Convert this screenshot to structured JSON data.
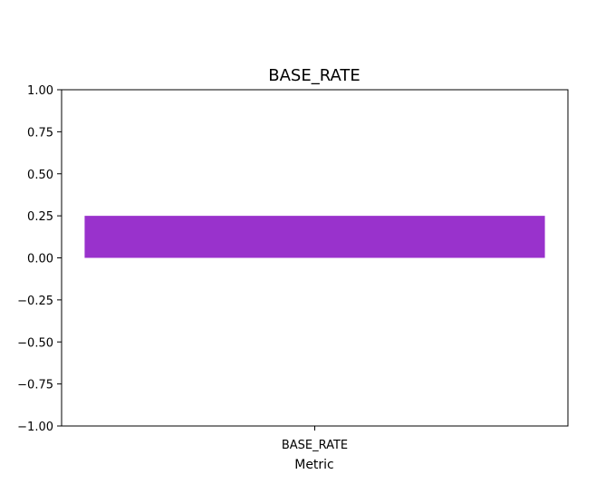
{
  "chart_data": {
    "type": "bar",
    "title": "BASE_RATE",
    "xlabel": "Metric",
    "ylabel": "",
    "categories": [
      "BASE_RATE"
    ],
    "values": [
      0.25
    ],
    "ylim": [
      -1.0,
      1.0
    ],
    "yticks": [
      "-1.00",
      "-0.75",
      "-0.50",
      "-0.25",
      "0.00",
      "0.25",
      "0.50",
      "0.75",
      "1.00"
    ],
    "ytick_values": [
      -1.0,
      -0.75,
      -0.5,
      -0.25,
      0.0,
      0.25,
      0.5,
      0.75,
      1.0
    ],
    "grid": false,
    "bar_color": "#9932cc"
  }
}
